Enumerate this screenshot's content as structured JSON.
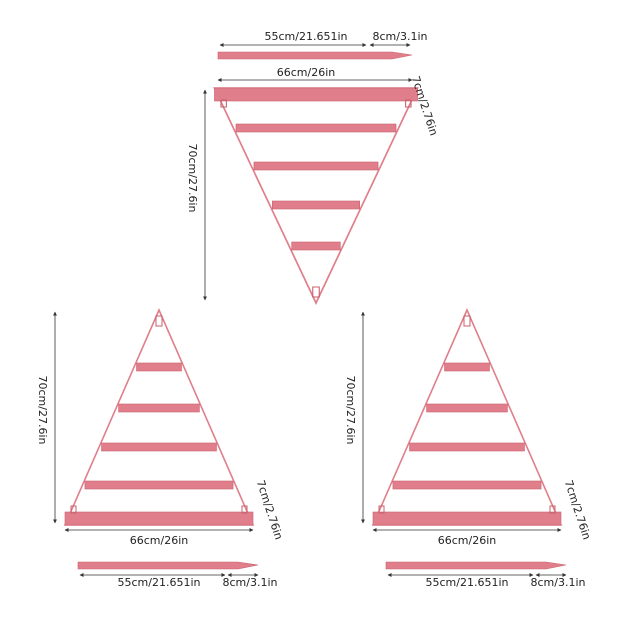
{
  "views": [
    {
      "plank_length": "55cm/21.651in",
      "plank_end": "8cm/3.1in",
      "width": "66cm/26in",
      "depth": "7cm/2.76in",
      "height": "70cm/27.6in"
    },
    {
      "plank_length": "55cm/21.651in",
      "plank_end": "8cm/3.1in",
      "width": "66cm/26in",
      "depth": "7cm/2.76in",
      "height": "70cm/27.6in"
    },
    {
      "plank_length": "55cm/21.651in",
      "plank_end": "8cm/3.1in",
      "width": "66cm/26in",
      "depth": "7cm/2.76in",
      "height": "70cm/27.6in"
    }
  ]
}
